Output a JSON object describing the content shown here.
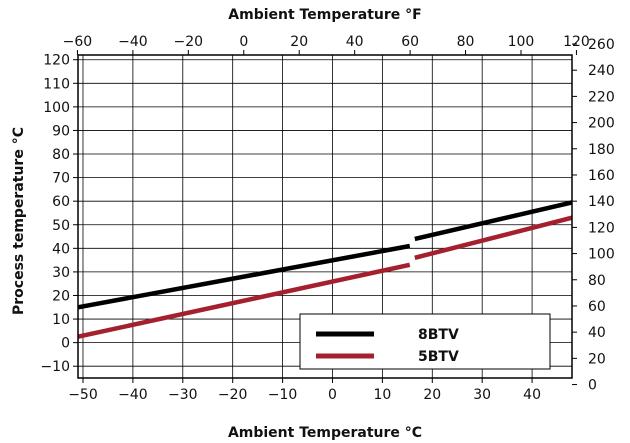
{
  "chart_data": {
    "type": "line",
    "title": "",
    "xlabel": "Ambient Temperature °C",
    "x2label": "Ambient Temperature °F",
    "ylabel": "Process temperature °C",
    "y2label": "",
    "xlim": [
      -51,
      48
    ],
    "ylim": [
      -15,
      122
    ],
    "x2lim": [
      -59.8,
      118.4
    ],
    "y2lim": [
      5,
      251.6
    ],
    "x_ticks": [
      -50,
      -40,
      -30,
      -20,
      -10,
      0,
      10,
      20,
      30,
      40
    ],
    "y_ticks": [
      -10,
      0,
      10,
      20,
      30,
      40,
      50,
      60,
      70,
      80,
      90,
      100,
      110,
      120
    ],
    "x2_ticks": [
      -60,
      -40,
      -20,
      0,
      20,
      40,
      60,
      80,
      100,
      120
    ],
    "y2_ticks": [
      0,
      20,
      40,
      60,
      80,
      100,
      120,
      140,
      160,
      180,
      200,
      220,
      240,
      260
    ],
    "grid": true,
    "legend_position": "bottom-right",
    "series": [
      {
        "name": "8BTV",
        "color": "#000000",
        "segments": [
          [
            [
              -51,
              15
            ],
            [
              15.5,
              41
            ]
          ],
          [
            [
              16.5,
              44
            ],
            [
              48,
              59.5
            ]
          ]
        ]
      },
      {
        "name": "5BTV",
        "color": "#a4202e",
        "segments": [
          [
            [
              -51,
              2.5
            ],
            [
              15.5,
              33
            ]
          ],
          [
            [
              16.5,
              36
            ],
            [
              48,
              53
            ]
          ]
        ]
      }
    ]
  }
}
